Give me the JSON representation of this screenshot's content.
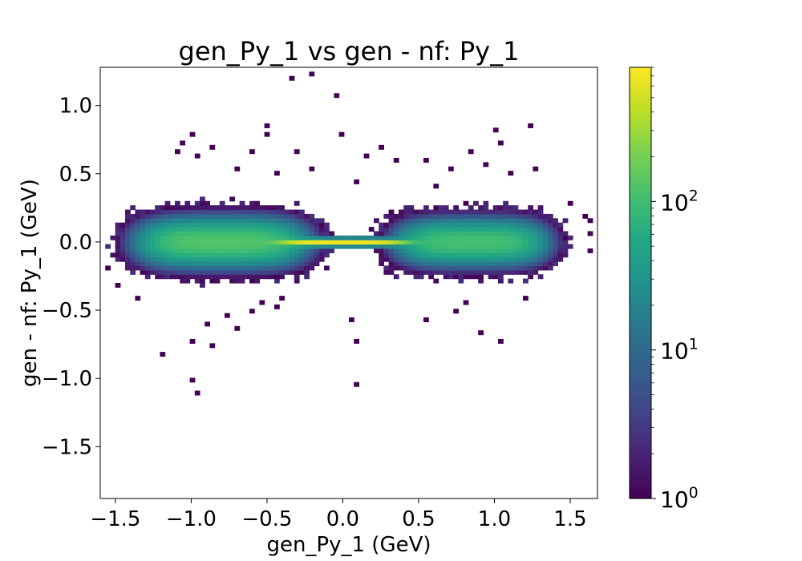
{
  "chart_data": {
    "type": "heatmap",
    "title": "gen_Py_1 vs gen - nf: Py_1",
    "xlabel": "gen_Py_1 (GeV)",
    "ylabel": "gen - nf: Py_1 (GeV)",
    "xlim": [
      -1.6,
      1.68
    ],
    "ylim": [
      -1.88,
      1.28
    ],
    "x_ticks": [
      -1.5,
      -1.0,
      -0.5,
      0.0,
      0.5,
      1.0,
      1.5
    ],
    "x_tick_labels": [
      "−1.5",
      "−1.0",
      "−0.5",
      "0.0",
      "0.5",
      "1.0",
      "1.5"
    ],
    "y_ticks": [
      -1.5,
      -1.0,
      -0.5,
      0.0,
      0.5,
      1.0
    ],
    "y_tick_labels": [
      "−1.5",
      "−1.0",
      "−0.5",
      "0.0",
      "0.5",
      "1.0"
    ],
    "colorbar": {
      "colormap": "viridis",
      "scale": "log",
      "range": [
        1,
        800
      ],
      "ticks": [
        1,
        10,
        100
      ],
      "tick_labels": [
        {
          "base": "10",
          "exp": "0"
        },
        {
          "base": "10",
          "exp": "1"
        },
        {
          "base": "10",
          "exp": "2"
        }
      ]
    },
    "bins": {
      "nx": 100,
      "ny": 100
    },
    "density_components": [
      {
        "name": "left lobe",
        "x": -0.8,
        "y": 0.0,
        "sx": 0.28,
        "sy": 0.085,
        "peak": 130
      },
      {
        "name": "right lobe",
        "x": 0.85,
        "y": 0.0,
        "sx": 0.25,
        "sy": 0.08,
        "peak": 110
      },
      {
        "name": "central streak",
        "x": 0.0,
        "y": 0.0,
        "sx": 0.22,
        "sy": 0.012,
        "peak": 700
      }
    ],
    "outlier_points": [
      [
        -0.35,
        1.19
      ],
      [
        -0.2,
        1.23
      ],
      [
        -0.15,
        1.28
      ],
      [
        -0.05,
        1.06
      ],
      [
        -0.5,
        0.85
      ],
      [
        -0.5,
        0.78
      ],
      [
        0.0,
        0.79
      ],
      [
        -1.0,
        0.78
      ],
      [
        -1.1,
        0.67
      ],
      [
        -1.05,
        0.72
      ],
      [
        -0.95,
        0.62
      ],
      [
        -0.85,
        0.68
      ],
      [
        -0.6,
        0.65
      ],
      [
        -0.3,
        0.65
      ],
      [
        -0.2,
        0.55
      ],
      [
        0.15,
        0.62
      ],
      [
        0.25,
        0.7
      ],
      [
        0.35,
        0.6
      ],
      [
        -0.7,
        0.55
      ],
      [
        -0.45,
        0.5
      ],
      [
        0.1,
        0.45
      ],
      [
        0.55,
        0.6
      ],
      [
        0.7,
        0.55
      ],
      [
        0.85,
        0.65
      ],
      [
        0.95,
        0.58
      ],
      [
        1.02,
        0.82
      ],
      [
        1.05,
        0.72
      ],
      [
        1.28,
        0.55
      ],
      [
        1.25,
        0.85
      ],
      [
        1.12,
        0.5
      ],
      [
        0.6,
        0.42
      ],
      [
        1.5,
        0.28
      ],
      [
        1.6,
        0.2
      ],
      [
        1.63,
        0.15
      ],
      [
        -0.98,
        -1.0
      ],
      [
        -0.95,
        -1.09
      ],
      [
        -1.18,
        -0.83
      ],
      [
        -1.0,
        -0.72
      ],
      [
        -0.85,
        -0.77
      ],
      [
        -0.9,
        -0.6
      ],
      [
        -0.75,
        -0.55
      ],
      [
        -0.7,
        -0.62
      ],
      [
        -0.6,
        -0.52
      ],
      [
        -0.55,
        -0.45
      ],
      [
        -0.45,
        -0.47
      ],
      [
        -0.4,
        -0.42
      ],
      [
        0.1,
        -0.74
      ],
      [
        0.1,
        -1.05
      ],
      [
        0.05,
        -0.57
      ],
      [
        0.55,
        -0.57
      ],
      [
        0.75,
        -0.5
      ],
      [
        0.92,
        -0.65
      ],
      [
        1.05,
        -0.72
      ],
      [
        1.2,
        -0.42
      ],
      [
        0.82,
        -0.45
      ],
      [
        -1.35,
        -0.42
      ],
      [
        -1.5,
        -0.3
      ],
      [
        -1.55,
        -0.2
      ],
      [
        1.62,
        -0.05
      ],
      [
        1.64,
        0.05
      ]
    ]
  }
}
